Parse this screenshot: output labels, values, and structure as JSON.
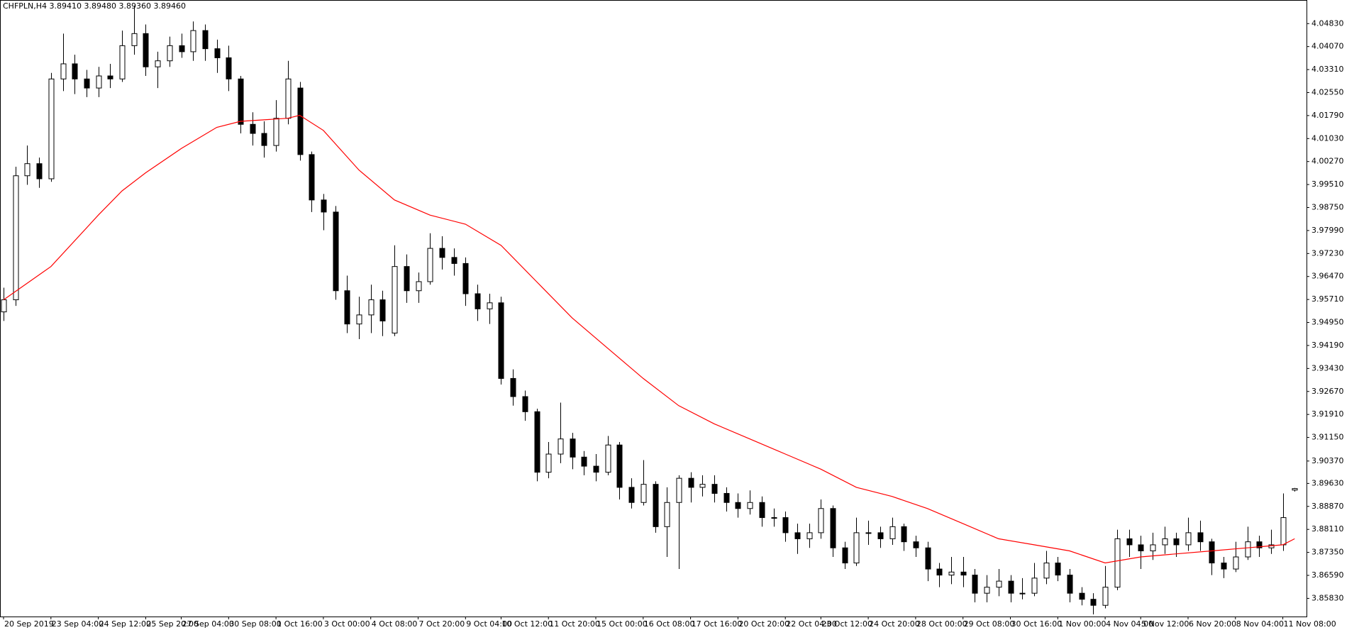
{
  "chart_data": {
    "type": "candlestick",
    "title": "CHFPLN,H4  3.89410 3.89480 3.89360 3.89460",
    "up_color": "#ffffff",
    "down_color": "#000000",
    "wick_color": "#000000",
    "ohlc": [
      [
        3.953,
        3.961,
        3.95,
        3.957
      ],
      [
        3.957,
        4.001,
        3.955,
        3.998
      ],
      [
        3.998,
        4.008,
        3.995,
        4.002
      ],
      [
        4.002,
        4.004,
        3.994,
        3.997
      ],
      [
        3.997,
        4.032,
        3.996,
        4.03
      ],
      [
        4.03,
        4.045,
        4.026,
        4.035
      ],
      [
        4.035,
        4.038,
        4.025,
        4.03
      ],
      [
        4.03,
        4.033,
        4.024,
        4.027
      ],
      [
        4.027,
        4.034,
        4.024,
        4.031
      ],
      [
        4.031,
        4.035,
        4.027,
        4.03
      ],
      [
        4.03,
        4.046,
        4.029,
        4.041
      ],
      [
        4.041,
        4.054,
        4.038,
        4.045
      ],
      [
        4.045,
        4.048,
        4.031,
        4.034
      ],
      [
        4.034,
        4.039,
        4.027,
        4.036
      ],
      [
        4.036,
        4.044,
        4.034,
        4.041
      ],
      [
        4.041,
        4.045,
        4.037,
        4.039
      ],
      [
        4.039,
        4.049,
        4.036,
        4.046
      ],
      [
        4.046,
        4.048,
        4.036,
        4.04
      ],
      [
        4.04,
        4.043,
        4.032,
        4.037
      ],
      [
        4.037,
        4.041,
        4.026,
        4.03
      ],
      [
        4.03,
        4.031,
        4.012,
        4.015
      ],
      [
        4.015,
        4.019,
        4.008,
        4.012
      ],
      [
        4.012,
        4.016,
        4.004,
        4.008
      ],
      [
        4.008,
        4.023,
        4.006,
        4.017
      ],
      [
        4.017,
        4.036,
        4.015,
        4.03
      ],
      [
        4.027,
        4.029,
        4.003,
        4.005
      ],
      [
        4.005,
        4.006,
        3.986,
        3.99
      ],
      [
        3.99,
        3.992,
        3.98,
        3.986
      ],
      [
        3.986,
        3.988,
        3.957,
        3.96
      ],
      [
        3.96,
        3.965,
        3.946,
        3.949
      ],
      [
        3.949,
        3.958,
        3.944,
        3.952
      ],
      [
        3.952,
        3.962,
        3.946,
        3.957
      ],
      [
        3.957,
        3.96,
        3.945,
        3.95
      ],
      [
        3.946,
        3.975,
        3.945,
        3.968
      ],
      [
        3.968,
        3.972,
        3.956,
        3.96
      ],
      [
        3.96,
        3.966,
        3.956,
        3.963
      ],
      [
        3.963,
        3.979,
        3.962,
        3.974
      ],
      [
        3.974,
        3.978,
        3.967,
        3.971
      ],
      [
        3.971,
        3.974,
        3.965,
        3.969
      ],
      [
        3.969,
        3.971,
        3.955,
        3.959
      ],
      [
        3.959,
        3.962,
        3.95,
        3.954
      ],
      [
        3.954,
        3.959,
        3.949,
        3.956
      ],
      [
        3.956,
        3.958,
        3.929,
        3.931
      ],
      [
        3.931,
        3.934,
        3.922,
        3.925
      ],
      [
        3.925,
        3.927,
        3.917,
        3.92
      ],
      [
        3.92,
        3.921,
        3.897,
        3.9
      ],
      [
        3.9,
        3.91,
        3.898,
        3.906
      ],
      [
        3.906,
        3.923,
        3.903,
        3.911
      ],
      [
        3.911,
        3.913,
        3.901,
        3.905
      ],
      [
        3.905,
        3.907,
        3.899,
        3.902
      ],
      [
        3.902,
        3.906,
        3.897,
        3.9
      ],
      [
        3.9,
        3.912,
        3.899,
        3.909
      ],
      [
        3.909,
        3.91,
        3.891,
        3.895
      ],
      [
        3.895,
        3.898,
        3.888,
        3.89
      ],
      [
        3.89,
        3.904,
        3.889,
        3.896
      ],
      [
        3.896,
        3.897,
        3.88,
        3.882
      ],
      [
        3.882,
        3.895,
        3.872,
        3.89
      ],
      [
        3.89,
        3.899,
        3.868,
        3.898
      ],
      [
        3.898,
        3.9,
        3.89,
        3.895
      ],
      [
        3.895,
        3.899,
        3.892,
        3.896
      ],
      [
        3.896,
        3.899,
        3.89,
        3.893
      ],
      [
        3.893,
        3.895,
        3.887,
        3.89
      ],
      [
        3.89,
        3.893,
        3.885,
        3.888
      ],
      [
        3.888,
        3.894,
        3.886,
        3.89
      ],
      [
        3.89,
        3.892,
        3.882,
        3.885
      ],
      [
        3.885,
        3.888,
        3.882,
        3.885
      ],
      [
        3.885,
        3.887,
        3.877,
        3.88
      ],
      [
        3.88,
        3.883,
        3.873,
        3.878
      ],
      [
        3.878,
        3.883,
        3.875,
        3.88
      ],
      [
        3.88,
        3.891,
        3.878,
        3.888
      ],
      [
        3.888,
        3.889,
        3.872,
        3.875
      ],
      [
        3.875,
        3.877,
        3.868,
        3.87
      ],
      [
        3.87,
        3.885,
        3.869,
        3.88
      ],
      [
        3.88,
        3.884,
        3.876,
        3.88
      ],
      [
        3.88,
        3.882,
        3.875,
        3.878
      ],
      [
        3.878,
        3.885,
        3.876,
        3.882
      ],
      [
        3.882,
        3.883,
        3.874,
        3.877
      ],
      [
        3.877,
        3.879,
        3.872,
        3.875
      ],
      [
        3.875,
        3.877,
        3.864,
        3.868
      ],
      [
        3.868,
        3.87,
        3.862,
        3.866
      ],
      [
        3.866,
        3.872,
        3.863,
        3.867
      ],
      [
        3.867,
        3.872,
        3.862,
        3.866
      ],
      [
        3.866,
        3.868,
        3.857,
        3.86
      ],
      [
        3.86,
        3.866,
        3.857,
        3.862
      ],
      [
        3.862,
        3.868,
        3.859,
        3.864
      ],
      [
        3.864,
        3.866,
        3.857,
        3.86
      ],
      [
        3.86,
        3.865,
        3.858,
        3.86
      ],
      [
        3.86,
        3.87,
        3.859,
        3.865
      ],
      [
        3.865,
        3.874,
        3.863,
        3.87
      ],
      [
        3.87,
        3.872,
        3.864,
        3.866
      ],
      [
        3.866,
        3.868,
        3.857,
        3.86
      ],
      [
        3.86,
        3.862,
        3.856,
        3.858
      ],
      [
        3.858,
        3.86,
        3.853,
        3.856
      ],
      [
        3.856,
        3.869,
        3.855,
        3.862
      ],
      [
        3.862,
        3.881,
        3.861,
        3.878
      ],
      [
        3.878,
        3.881,
        3.872,
        3.876
      ],
      [
        3.876,
        3.879,
        3.868,
        3.874
      ],
      [
        3.874,
        3.88,
        3.871,
        3.876
      ],
      [
        3.876,
        3.882,
        3.873,
        3.878
      ],
      [
        3.878,
        3.88,
        3.872,
        3.876
      ],
      [
        3.876,
        3.885,
        3.874,
        3.88
      ],
      [
        3.88,
        3.884,
        3.874,
        3.877
      ],
      [
        3.877,
        3.878,
        3.866,
        3.87
      ],
      [
        3.87,
        3.872,
        3.865,
        3.868
      ],
      [
        3.868,
        3.877,
        3.867,
        3.872
      ],
      [
        3.872,
        3.882,
        3.871,
        3.877
      ],
      [
        3.877,
        3.879,
        3.872,
        3.875
      ],
      [
        3.875,
        3.881,
        3.873,
        3.876
      ],
      [
        3.876,
        3.893,
        3.874,
        3.885
      ],
      [
        3.8941,
        3.8948,
        3.8936,
        3.8946
      ]
    ],
    "moving_average": {
      "color": "#ff0000",
      "x": [
        0,
        4,
        8,
        10,
        12,
        15,
        18,
        20,
        24,
        25,
        27,
        30,
        33,
        36,
        39,
        42,
        45,
        48,
        51,
        54,
        57,
        60,
        63,
        66,
        69,
        72,
        75,
        78,
        81,
        84,
        87,
        90,
        93,
        96,
        99,
        102,
        105,
        108,
        109
      ],
      "values": [
        3.957,
        3.968,
        3.985,
        3.993,
        3.999,
        4.007,
        4.014,
        4.016,
        4.017,
        4.018,
        4.013,
        3.9999,
        3.99,
        3.985,
        3.982,
        3.975,
        3.963,
        3.951,
        3.941,
        3.931,
        3.922,
        3.916,
        3.911,
        3.906,
        3.901,
        3.895,
        3.892,
        3.888,
        3.883,
        3.878,
        3.876,
        3.874,
        3.87,
        3.872,
        3.873,
        3.874,
        3.875,
        3.876,
        3.878
      ]
    },
    "xlim": [
      -0.3,
      110
    ],
    "xticks": [
      {
        "value": 0,
        "label": "20 Sep 2019"
      },
      {
        "value": 4,
        "label": "23 Sep 04:00"
      },
      {
        "value": 8,
        "label": "24 Sep 12:00"
      },
      {
        "value": 12,
        "label": "25 Sep 20:00"
      },
      {
        "value": 15,
        "label": "27 Sep 04:00"
      },
      {
        "value": 19,
        "label": "30 Sep 08:00"
      },
      {
        "value": 23,
        "label": "1 Oct 16:00"
      },
      {
        "value": 27,
        "label": "3 Oct 00:00"
      },
      {
        "value": 31,
        "label": "4 Oct 08:00"
      },
      {
        "value": 35,
        "label": "7 Oct 20:00"
      },
      {
        "value": 39,
        "label": "9 Oct 04:00"
      },
      {
        "value": 42,
        "label": "10 Oct 12:00"
      },
      {
        "value": 46,
        "label": "11 Oct 20:00"
      },
      {
        "value": 50,
        "label": "15 Oct 00:00"
      },
      {
        "value": 54,
        "label": "16 Oct 08:00"
      },
      {
        "value": 58,
        "label": "17 Oct 16:00"
      },
      {
        "value": 62,
        "label": "20 Oct 20:00"
      },
      {
        "value": 66,
        "label": "22 Oct 04:00"
      },
      {
        "value": 69,
        "label": "23 Oct 12:00"
      },
      {
        "value": 73,
        "label": "24 Oct 20:00"
      },
      {
        "value": 77,
        "label": "28 Oct 00:00"
      },
      {
        "value": 81,
        "label": "29 Oct 08:00"
      },
      {
        "value": 85,
        "label": "30 Oct 16:00"
      },
      {
        "value": 89,
        "label": "1 Nov 00:00"
      },
      {
        "value": 93,
        "label": "4 Nov 04:00"
      },
      {
        "value": 96,
        "label": "5 Nov 12:00"
      },
      {
        "value": 100,
        "label": "6 Nov 20:00"
      },
      {
        "value": 104,
        "label": "8 Nov 04:00"
      },
      {
        "value": 108,
        "label": "11 Nov 08:00"
      }
    ],
    "ylim": [
      3.8523,
      4.0561
    ],
    "yticks": [
      {
        "value": 4.0483,
        "label": "4.04830"
      },
      {
        "value": 4.0407,
        "label": "4.04070"
      },
      {
        "value": 4.0331,
        "label": "4.03310"
      },
      {
        "value": 4.0255,
        "label": "4.02550"
      },
      {
        "value": 4.0179,
        "label": "4.01790"
      },
      {
        "value": 4.0103,
        "label": "4.01030"
      },
      {
        "value": 4.0027,
        "label": "4.00270"
      },
      {
        "value": 3.9951,
        "label": "3.99510"
      },
      {
        "value": 3.9875,
        "label": "3.98750"
      },
      {
        "value": 3.9799,
        "label": "3.97990"
      },
      {
        "value": 3.9723,
        "label": "3.97230"
      },
      {
        "value": 3.9647,
        "label": "3.96470"
      },
      {
        "value": 3.9571,
        "label": "3.95710"
      },
      {
        "value": 3.9495,
        "label": "3.94950"
      },
      {
        "value": 3.9419,
        "label": "3.94190"
      },
      {
        "value": 3.9343,
        "label": "3.93430"
      },
      {
        "value": 3.9267,
        "label": "3.92670"
      },
      {
        "value": 3.9191,
        "label": "3.91910"
      },
      {
        "value": 3.9115,
        "label": "3.91150"
      },
      {
        "value": 3.9037,
        "label": "3.90370"
      },
      {
        "value": 3.8963,
        "label": "3.89630"
      },
      {
        "value": 3.8887,
        "label": "3.88870"
      },
      {
        "value": 3.8811,
        "label": "3.88110"
      },
      {
        "value": 3.8735,
        "label": "3.87350"
      },
      {
        "value": 3.8659,
        "label": "3.86590"
      },
      {
        "value": 3.8583,
        "label": "3.85830"
      }
    ]
  }
}
